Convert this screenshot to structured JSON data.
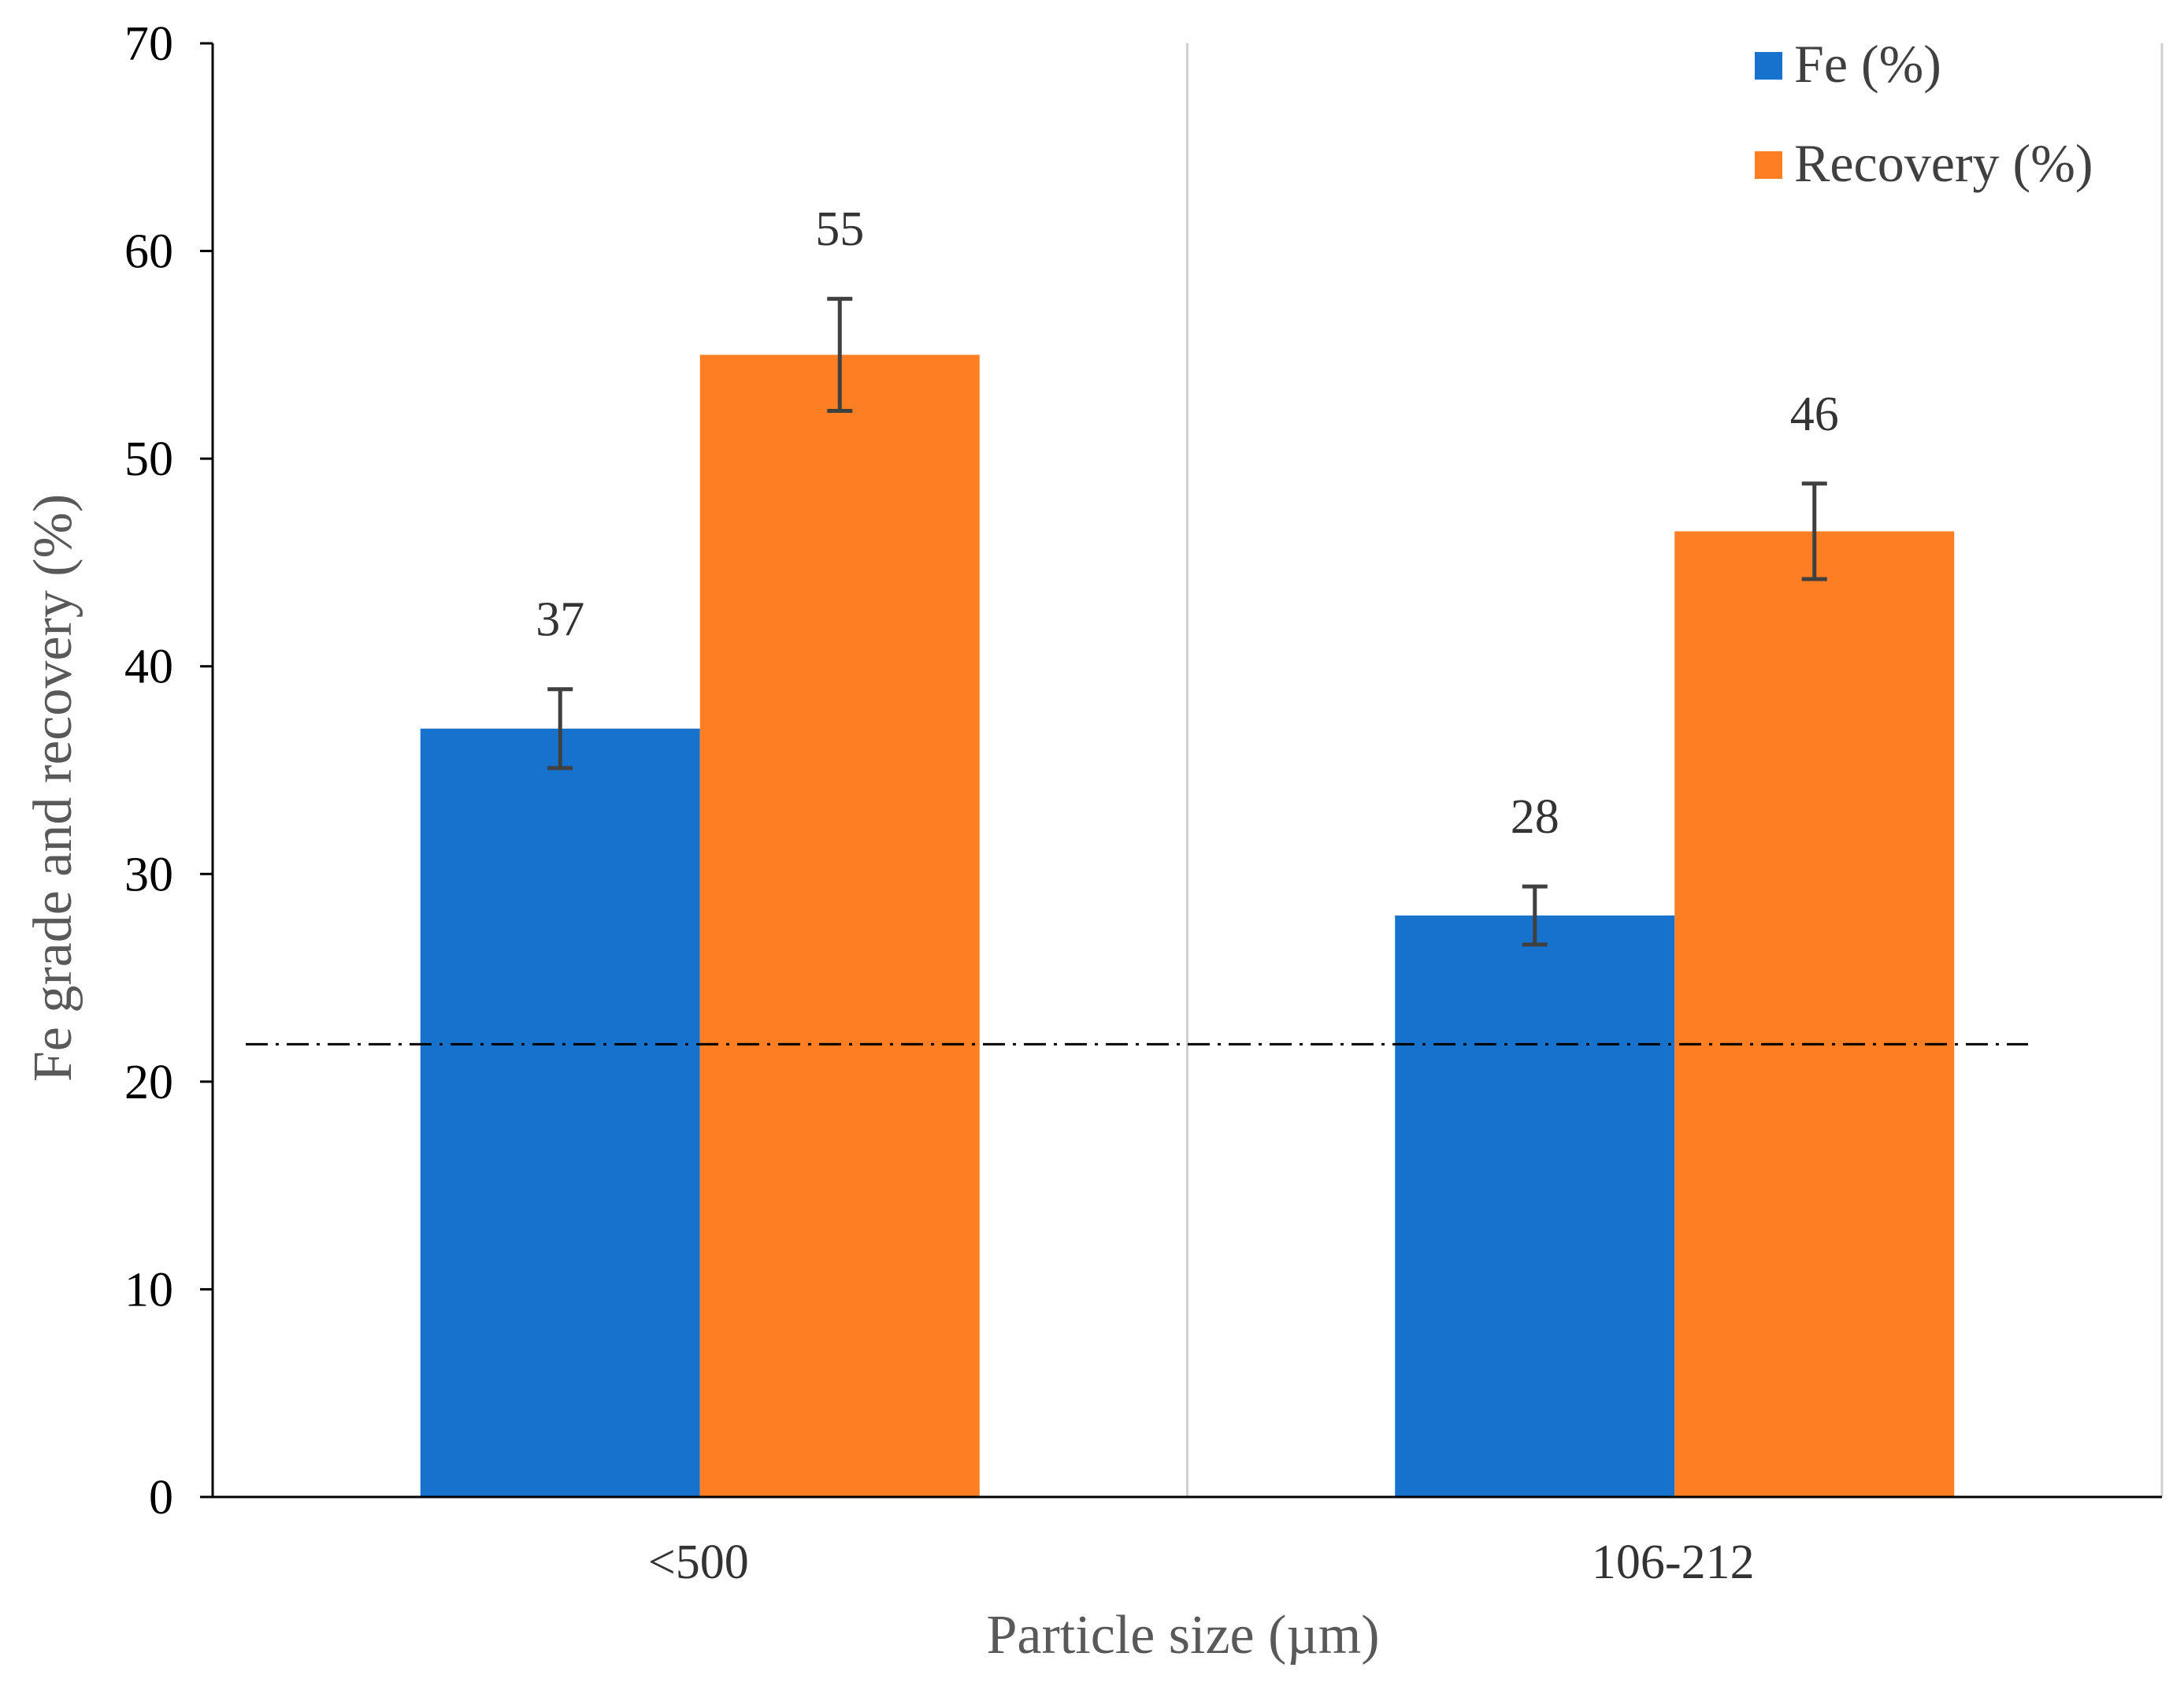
{
  "chart_data": {
    "type": "bar",
    "categories": [
      "<500",
      "106-212"
    ],
    "series": [
      {
        "name": "Fe (%)",
        "color": "#1672cc",
        "values": [
          37,
          28
        ],
        "errors": [
          1.9,
          1.4
        ],
        "labels": [
          "37",
          "28"
        ]
      },
      {
        "name": "Recovery (%)",
        "color": "#fd7e23",
        "values": [
          55,
          46.5
        ],
        "errors": [
          2.7,
          2.3
        ],
        "labels": [
          "55",
          "46"
        ]
      }
    ],
    "xlabel": "Particle size (µm)",
    "ylabel": "Fe grade and recovery (%)",
    "ylim": [
      0,
      70
    ],
    "yticks": [
      0,
      10,
      20,
      30,
      40,
      50,
      60,
      70
    ],
    "reference_line": {
      "y": 21.8,
      "style": "dash-dot"
    },
    "legend_position": "top-right",
    "grid": false
  }
}
